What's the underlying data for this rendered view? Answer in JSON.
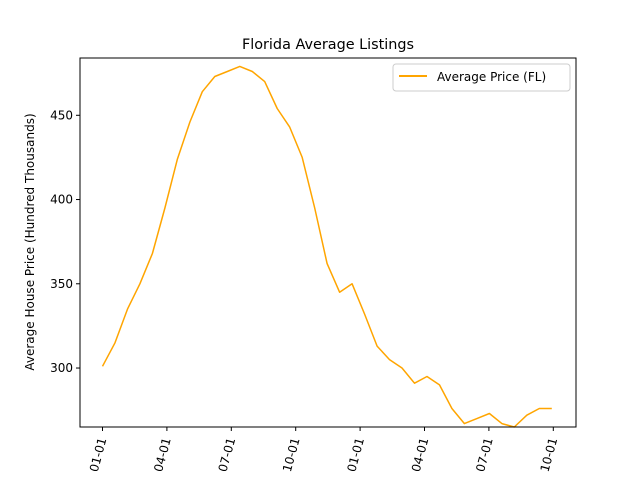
{
  "chart_data": {
    "type": "line",
    "title": "Florida Average Listings",
    "xlabel": "",
    "ylabel": "Average House Price (Hundred Thousands)",
    "x_tick_labels": [
      "01-01",
      "04-01",
      "07-01",
      "10-01",
      "01-01",
      "04-01",
      "07-01",
      "10-01"
    ],
    "y_ticks": [
      300,
      350,
      400,
      450
    ],
    "ylim": [
      265,
      484
    ],
    "legend_position": "top-right",
    "grid": false,
    "series": [
      {
        "name": "Average Price (FL)",
        "color": "#ffa500",
        "x": [
          0,
          1,
          2,
          3,
          4,
          5,
          6,
          7,
          8,
          9,
          10,
          11,
          12,
          13,
          14,
          15,
          16,
          17,
          18,
          19,
          20,
          21,
          22,
          23,
          24,
          25,
          26,
          27,
          28,
          29,
          30,
          31,
          32,
          33,
          34,
          35,
          36
        ],
        "values": [
          301,
          315,
          335,
          350,
          368,
          395,
          424,
          446,
          464,
          473,
          476,
          479,
          476,
          470,
          454,
          443,
          425,
          395,
          362,
          345,
          350,
          332,
          313,
          305,
          300,
          291,
          295,
          290,
          276,
          267,
          270,
          273,
          267,
          265,
          272,
          276,
          276
        ]
      }
    ]
  }
}
